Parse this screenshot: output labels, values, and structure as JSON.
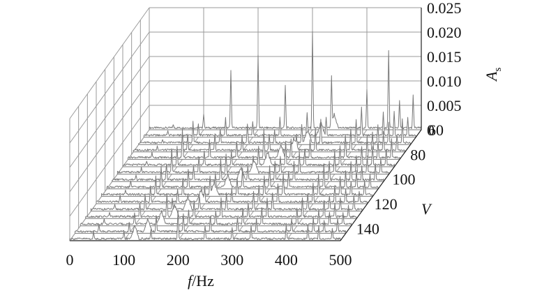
{
  "chart_data": {
    "type": "waterfall-3d-spectrum",
    "x_axis": {
      "label_var": "f",
      "label_unit": "/Hz",
      "ticks": [
        "0",
        "100",
        "200",
        "300",
        "400",
        "500"
      ],
      "range": [
        0,
        500
      ]
    },
    "y_axis": {
      "label": "V",
      "ticks": [
        "60",
        "80",
        "100",
        "120",
        "140"
      ],
      "range": [
        60,
        150
      ]
    },
    "z_axis": {
      "label_main": "A",
      "label_sub": "s",
      "ticks": [
        "0",
        "0.005",
        "0.010",
        "0.015",
        "0.020",
        "0.025"
      ],
      "range": [
        0,
        0.025
      ]
    },
    "grid": true,
    "line_color": "#7a7a7a",
    "speeds": [
      60,
      66,
      72,
      78,
      84,
      90,
      96,
      102,
      108,
      114,
      120,
      126,
      132,
      138,
      144,
      150
    ],
    "peaks": [
      {
        "f": 44,
        "a": [
          0.001,
          0.0012,
          0.0009,
          0.0011,
          0.0013,
          0.001,
          0.0012,
          0.0011,
          0.0014,
          0.0012,
          0.0015,
          0.0013,
          0.0012,
          0.0014,
          0.0016,
          0.0018
        ]
      },
      {
        "f": 100,
        "a": [
          0.003,
          0.0025,
          0.0045,
          0.0035,
          0.006,
          0.004,
          0.005,
          0.0035,
          0.0045,
          0.004,
          0.0035,
          0.003,
          0.003,
          0.0025,
          0.002,
          0.0018
        ]
      },
      {
        "f": 150,
        "a": [
          0.012,
          0.004,
          0.003,
          0.0035,
          0.004,
          0.003,
          0.0035,
          0.003,
          0.004,
          0.0035,
          0.003,
          0.0025,
          0.005,
          0.003,
          0.0035,
          0.002
        ]
      },
      {
        "f": 200,
        "a": [
          0.015,
          0.003,
          0.004,
          0.003,
          0.0035,
          0.003,
          0.004,
          0.0045,
          0.003,
          0.004,
          0.0035,
          0.003,
          0.0035,
          0.003,
          0.004,
          0.006
        ]
      },
      {
        "f": 250,
        "a": [
          0.009,
          0.004,
          0.003,
          0.0035,
          0.006,
          0.004,
          0.0035,
          0.003,
          0.004,
          0.0035,
          0.003,
          0.0035,
          0.004,
          0.003,
          0.0035,
          0.003
        ]
      },
      {
        "f": 300,
        "a": [
          0.02,
          0.005,
          0.004,
          0.0035,
          0.004,
          0.005,
          0.0035,
          0.004,
          0.0045,
          0.004,
          0.0035,
          0.004,
          0.003,
          0.0035,
          0.003,
          0.0025
        ]
      },
      {
        "f": 335,
        "a": [
          0.011,
          0.004,
          0.005,
          0.0045,
          0.004,
          0.0035,
          0.0045,
          0.004,
          0.0035,
          0.0045,
          0.004,
          0.0035,
          0.004,
          0.0035,
          0.003,
          0.003
        ]
      },
      {
        "f": 400,
        "a": [
          0.008,
          0.006,
          0.005,
          0.0045,
          0.005,
          0.004,
          0.0045,
          0.004,
          0.005,
          0.0045,
          0.004,
          0.0035,
          0.004,
          0.0035,
          0.003,
          0.003
        ]
      },
      {
        "f": 440,
        "a": [
          0.016,
          0.005,
          0.004,
          0.004,
          0.0045,
          0.004,
          0.0035,
          0.004,
          0.0035,
          0.004,
          0.0035,
          0.003,
          0.0035,
          0.003,
          0.003,
          0.003
        ]
      },
      {
        "f": 460,
        "a": [
          0.006,
          0.005,
          0.0045,
          0.004,
          0.0035,
          0.004,
          0.0035,
          0.003,
          0.0035,
          0.003,
          0.003,
          0.0025,
          0.003,
          0.0025,
          0.0025,
          0.003
        ]
      },
      {
        "f": 485,
        "a": [
          0.007,
          0.004,
          0.005,
          0.0035,
          0.004,
          0.0035,
          0.003,
          0.0035,
          0.003,
          0.003,
          0.0025,
          0.003,
          0.0025,
          0.0025,
          0.003,
          0.0025
        ]
      }
    ],
    "ridge": {
      "f_start": 340,
      "f_end": 120,
      "amplitude": 0.003
    }
  }
}
